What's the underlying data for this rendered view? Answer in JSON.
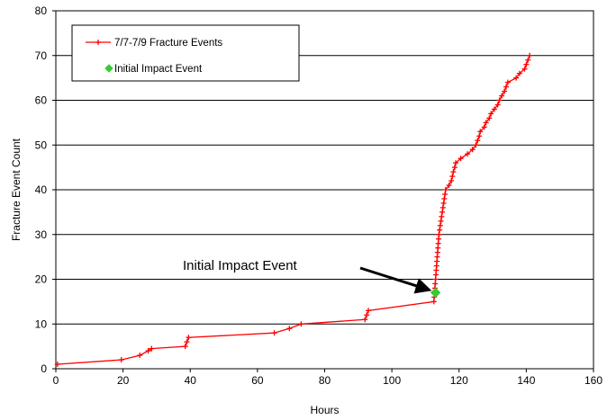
{
  "chart_data": {
    "type": "line",
    "xlabel": "Hours",
    "ylabel": "Fracture Event Count",
    "xlim": [
      0,
      160
    ],
    "ylim": [
      0,
      80
    ],
    "x_ticks": [
      "0",
      "20",
      "40",
      "60",
      "80",
      "100",
      "120",
      "140",
      "160"
    ],
    "y_ticks": [
      "0",
      "10",
      "20",
      "30",
      "40",
      "50",
      "60",
      "70",
      "80"
    ],
    "grid": "horizontal",
    "legend_position": "top-left",
    "series": [
      {
        "name": "7/7-7/9 Fracture Events",
        "color": "#ff0000",
        "marker": "plus",
        "points": [
          [
            0.5,
            1
          ],
          [
            19.5,
            2
          ],
          [
            25,
            3
          ],
          [
            27.5,
            4
          ],
          [
            28.5,
            4.5
          ],
          [
            38.5,
            5
          ],
          [
            39,
            6
          ],
          [
            39.5,
            7
          ],
          [
            65,
            8
          ],
          [
            69.5,
            9
          ],
          [
            73,
            10
          ],
          [
            92,
            11
          ],
          [
            92.5,
            12
          ],
          [
            93,
            13
          ],
          [
            112.5,
            15
          ],
          [
            112.6,
            16
          ],
          [
            112.7,
            17
          ],
          [
            112.8,
            18
          ],
          [
            112.9,
            19
          ],
          [
            113,
            20
          ],
          [
            113.1,
            21
          ],
          [
            113.2,
            22
          ],
          [
            113.3,
            23
          ],
          [
            113.4,
            24
          ],
          [
            113.5,
            25
          ],
          [
            113.6,
            26
          ],
          [
            113.7,
            27
          ],
          [
            113.8,
            28
          ],
          [
            113.9,
            29
          ],
          [
            114,
            30
          ],
          [
            114.2,
            31
          ],
          [
            114.4,
            32
          ],
          [
            114.6,
            33
          ],
          [
            114.8,
            34
          ],
          [
            115,
            35
          ],
          [
            115.2,
            36
          ],
          [
            115.4,
            37
          ],
          [
            115.6,
            38
          ],
          [
            115.8,
            39
          ],
          [
            116,
            40
          ],
          [
            117,
            41
          ],
          [
            117.7,
            42
          ],
          [
            118,
            43
          ],
          [
            118.3,
            44
          ],
          [
            118.7,
            45
          ],
          [
            119,
            46
          ],
          [
            120.5,
            47
          ],
          [
            122.5,
            48
          ],
          [
            124,
            49
          ],
          [
            125,
            50
          ],
          [
            125.5,
            51
          ],
          [
            126,
            52
          ],
          [
            126.3,
            53
          ],
          [
            127.5,
            54
          ],
          [
            128,
            55
          ],
          [
            129,
            56
          ],
          [
            129.5,
            57
          ],
          [
            130.5,
            58
          ],
          [
            131.5,
            59
          ],
          [
            132,
            60
          ],
          [
            132.7,
            61
          ],
          [
            133.5,
            62
          ],
          [
            134,
            63
          ],
          [
            134.5,
            64
          ],
          [
            137,
            65
          ],
          [
            138,
            66
          ],
          [
            139.5,
            67
          ],
          [
            140,
            68
          ],
          [
            140.5,
            69
          ],
          [
            141,
            70
          ]
        ]
      },
      {
        "name": "Initial Impact Event",
        "color": "#33cc33",
        "marker": "diamond",
        "points": [
          [
            113,
            17
          ]
        ]
      }
    ],
    "annotations": [
      {
        "text": "Initial Impact Event",
        "x": 113,
        "y": 17
      }
    ]
  }
}
